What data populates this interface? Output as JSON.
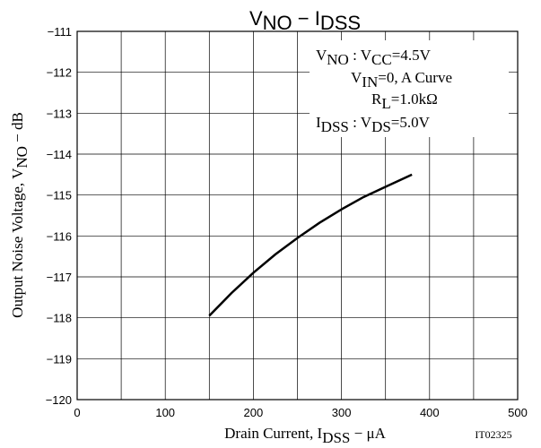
{
  "chart_data": {
    "type": "line",
    "title": [
      "V",
      "NO",
      " − I",
      "DSS"
    ],
    "x_label": [
      "Drain Current, I",
      "DSS",
      " − μA"
    ],
    "y_label": [
      "Output Noise Voltage, V",
      "NO",
      " − dB"
    ],
    "code": "IT02325",
    "annotation": [
      [
        "V",
        "NO",
        " : V",
        "CC",
        "=4.5V"
      ],
      [
        "V",
        "IN",
        "=0, A Curve"
      ],
      [
        "R",
        "L",
        "=1.0kΩ"
      ],
      [
        "I",
        "DSS",
        " : V",
        "DS",
        "=5.0V"
      ]
    ],
    "x": [
      150,
      175,
      200,
      225,
      250,
      275,
      300,
      325,
      350,
      380
    ],
    "series": [
      {
        "color": "#000000",
        "values": [
          -117.95,
          -117.4,
          -116.9,
          -116.45,
          -116.05,
          -115.68,
          -115.35,
          -115.05,
          -114.8,
          -114.5
        ]
      }
    ],
    "xlim": [
      0,
      500
    ],
    "ylim": [
      -120,
      -111
    ],
    "xticks": [
      0,
      100,
      200,
      300,
      400,
      500
    ],
    "xgrid": [
      0,
      50,
      100,
      150,
      200,
      250,
      300,
      350,
      400,
      450,
      500
    ],
    "yticks": [
      {
        "value": -111,
        "label": "−111"
      },
      {
        "value": -112,
        "label": "−112"
      },
      {
        "value": -113,
        "label": "−113"
      },
      {
        "value": -114,
        "label": "−114"
      },
      {
        "value": -115,
        "label": "−115"
      },
      {
        "value": -116,
        "label": "−116"
      },
      {
        "value": -117,
        "label": "−117"
      },
      {
        "value": -118,
        "label": "−118"
      },
      {
        "value": -119,
        "label": "−119"
      },
      {
        "value": -120,
        "label": "−120"
      }
    ],
    "grid": true
  }
}
